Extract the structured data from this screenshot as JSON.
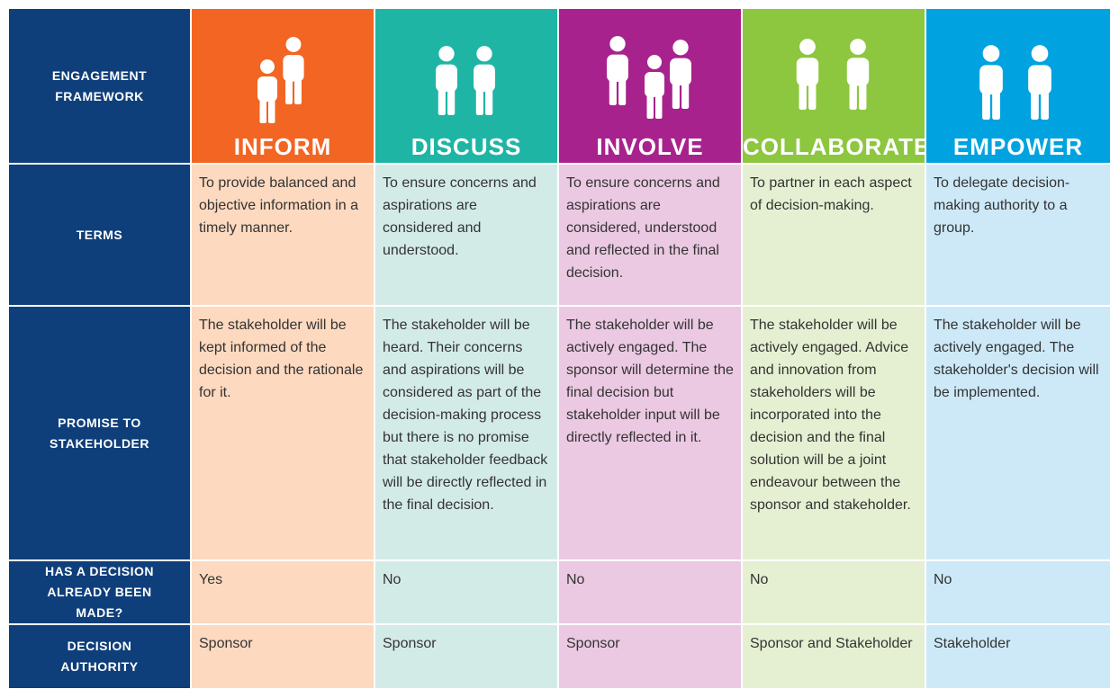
{
  "header": {
    "title": "ENGAGEMENT FRAMEWORK"
  },
  "row_labels": [
    "TERMS",
    "PROMISE TO STAKEHOLDER",
    "HAS A DECISION ALREADY BEEN MADE?",
    "DECISION AUTHORITY"
  ],
  "columns": [
    {
      "name": "INFORM",
      "terms": "To provide balanced and objective information in a timely manner.",
      "promise": "The stakeholder will be kept informed of the decision and the rationale for it.",
      "decided": "Yes",
      "authority": "Sponsor"
    },
    {
      "name": "DISCUSS",
      "terms": "To ensure concerns and aspirations are considered and understood.",
      "promise": "The stakeholder will be heard. Their concerns and aspirations will be considered as part of the decision-making process but there is no promise that stakeholder feedback will be directly reflected in the final decision.",
      "decided": "No",
      "authority": "Sponsor"
    },
    {
      "name": "INVOLVE",
      "terms": "To ensure concerns and aspirations are considered, understood and reflected in the final decision.",
      "promise": "The stakeholder will be actively engaged. The sponsor will determine the final decision but stakeholder input will be directly reflected in it.",
      "decided": "No",
      "authority": "Sponsor"
    },
    {
      "name": "COLLABORATE",
      "terms": "To partner in each aspect of decision-making.",
      "promise": "The stakeholder will be actively engaged. Advice and innovation from stakeholders will be incorporated into the decision and the final solution will be a joint endeavour between the sponsor and stakeholder.",
      "decided": "No",
      "authority": "Sponsor and Stakeholder"
    },
    {
      "name": "EMPOWER",
      "terms": "To delegate decision-making authority to a group.",
      "promise": "The stakeholder will be actively engaged. The stakeholder's decision will be implemented.",
      "decided": "No",
      "authority": "Stakeholder"
    }
  ]
}
